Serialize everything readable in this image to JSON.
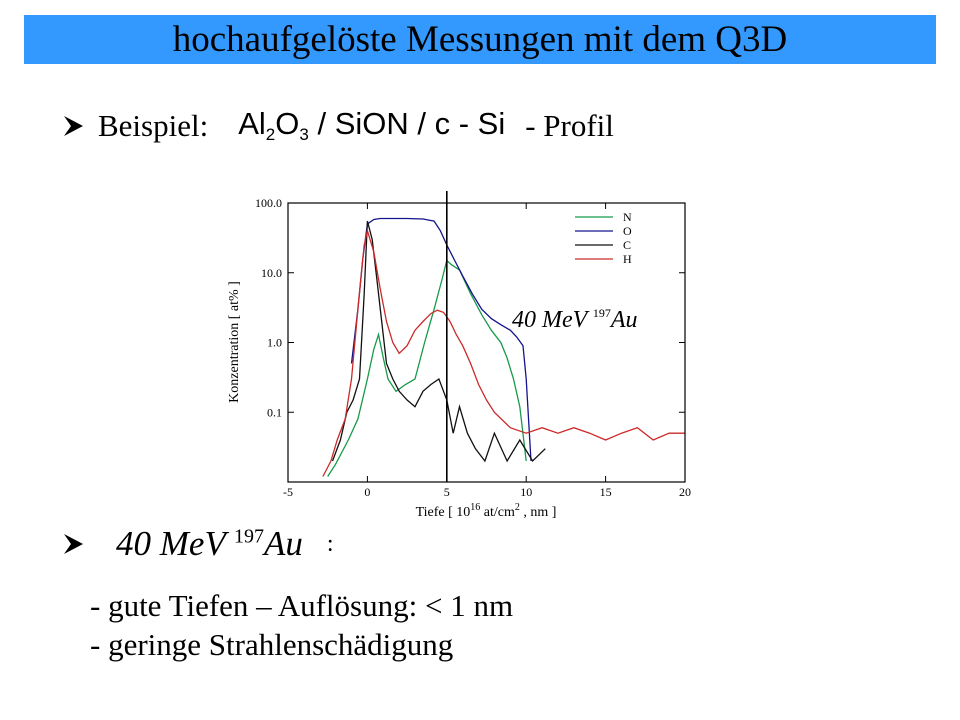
{
  "title": "hochaufgelöste Messungen mit dem Q3D",
  "bullet1": {
    "label": "Beispiel:",
    "formula_parts": [
      "Al",
      "2",
      "O",
      "3",
      " / SiON / c - Si"
    ],
    "suffix": "- Profil"
  },
  "bullet2": {
    "energy": "40 MeV ",
    "mass": "197",
    "element": "Au",
    "colon": ":"
  },
  "lines": [
    "- gute Tiefen – Auflösung: < 1 nm",
    "- geringe Strahlenschädigung"
  ],
  "chart_data": {
    "type": "line",
    "ylabel": "Konzentration  [ at% ]",
    "xlabel_parts": [
      "Tiefe  [ 10",
      "16",
      " at/cm",
      "2",
      " , nm ]"
    ],
    "xlim": [
      -5,
      20
    ],
    "ylim": [
      0.01,
      100
    ],
    "yscale": "log",
    "xticks": [
      -5,
      0,
      5,
      10,
      15,
      20
    ],
    "yticks": [
      100,
      10,
      1,
      0.1
    ],
    "ytick_labels": [
      "100.0",
      "10.0",
      "1.0",
      "0.1"
    ],
    "annotation": {
      "energy": "40 MeV ",
      "mass": "197",
      "element": "Au"
    },
    "vline_x": 5,
    "legend_placement": "top-right",
    "series": [
      {
        "name": "N",
        "color": "#179a4a",
        "x": [
          -2.5,
          -2.0,
          -1.2,
          -0.6,
          0,
          0.4,
          0.7,
          1.0,
          1.3,
          1.8,
          2.4,
          3.0,
          3.6,
          4.2,
          4.7,
          5.0,
          5.3,
          5.8,
          6.5,
          7.2,
          7.8,
          8.4,
          8.8,
          9.2,
          9.6,
          10.0
        ],
        "y": [
          0.012,
          0.018,
          0.04,
          0.08,
          0.3,
          0.8,
          1.3,
          0.6,
          0.3,
          0.2,
          0.25,
          0.3,
          1.0,
          3.0,
          8.0,
          15.0,
          13.0,
          11.0,
          5.0,
          2.5,
          1.5,
          1.0,
          0.6,
          0.3,
          0.12,
          0.02
        ]
      },
      {
        "name": "O",
        "color": "#14148c",
        "x": [
          -1.0,
          -0.6,
          -0.3,
          0,
          0.4,
          0.8,
          1.5,
          2.5,
          3.5,
          4.2,
          4.6,
          5.0,
          5.5,
          6.0,
          6.6,
          7.2,
          7.8,
          8.4,
          9.0,
          9.4,
          9.8,
          10.0,
          10.3
        ],
        "y": [
          0.5,
          3.0,
          15.0,
          50.0,
          58.0,
          60.0,
          60.0,
          60.0,
          59.0,
          55.0,
          40.0,
          25.0,
          15.0,
          9.0,
          5.0,
          3.0,
          2.2,
          1.8,
          1.5,
          1.2,
          0.9,
          0.3,
          0.02
        ]
      },
      {
        "name": "C",
        "color": "#111111",
        "x": [
          -2.2,
          -1.7,
          -1.3,
          -0.9,
          -0.5,
          -0.2,
          0,
          0.3,
          0.6,
          0.9,
          1.2,
          1.6,
          2.0,
          2.5,
          3.0,
          3.5,
          4.0,
          4.5,
          5.0,
          5.4,
          5.8,
          6.3,
          6.8,
          7.4,
          8.0,
          8.8,
          9.6,
          10.4,
          11.2
        ],
        "y": [
          0.02,
          0.04,
          0.1,
          0.15,
          0.3,
          5.0,
          55.0,
          30.0,
          8.0,
          2.0,
          0.5,
          0.3,
          0.2,
          0.15,
          0.12,
          0.2,
          0.25,
          0.3,
          0.15,
          0.05,
          0.12,
          0.05,
          0.03,
          0.02,
          0.05,
          0.02,
          0.04,
          0.02,
          0.03
        ]
      },
      {
        "name": "H",
        "color": "#cc2a2a",
        "x": [
          -2.8,
          -2.3,
          -1.9,
          -1.4,
          -1.0,
          -0.6,
          -0.2,
          0,
          0.4,
          0.8,
          1.2,
          1.6,
          2.0,
          2.5,
          3.0,
          3.5,
          4.0,
          4.4,
          4.8,
          5.2,
          5.6,
          6.0,
          6.5,
          7.0,
          7.5,
          8.0,
          9.0,
          10.0,
          11.0,
          12.0,
          13.0,
          14.0,
          15.0,
          16.0,
          17.0,
          18.0,
          19.0,
          20.0
        ],
        "y": [
          0.012,
          0.02,
          0.04,
          0.08,
          0.3,
          3.0,
          25.0,
          40.0,
          20.0,
          6.0,
          2.0,
          1.0,
          0.7,
          0.9,
          1.5,
          2.0,
          2.6,
          2.9,
          2.7,
          2.0,
          1.3,
          0.9,
          0.5,
          0.25,
          0.15,
          0.1,
          0.06,
          0.05,
          0.06,
          0.05,
          0.06,
          0.05,
          0.04,
          0.05,
          0.06,
          0.04,
          0.05,
          0.05
        ]
      }
    ]
  }
}
